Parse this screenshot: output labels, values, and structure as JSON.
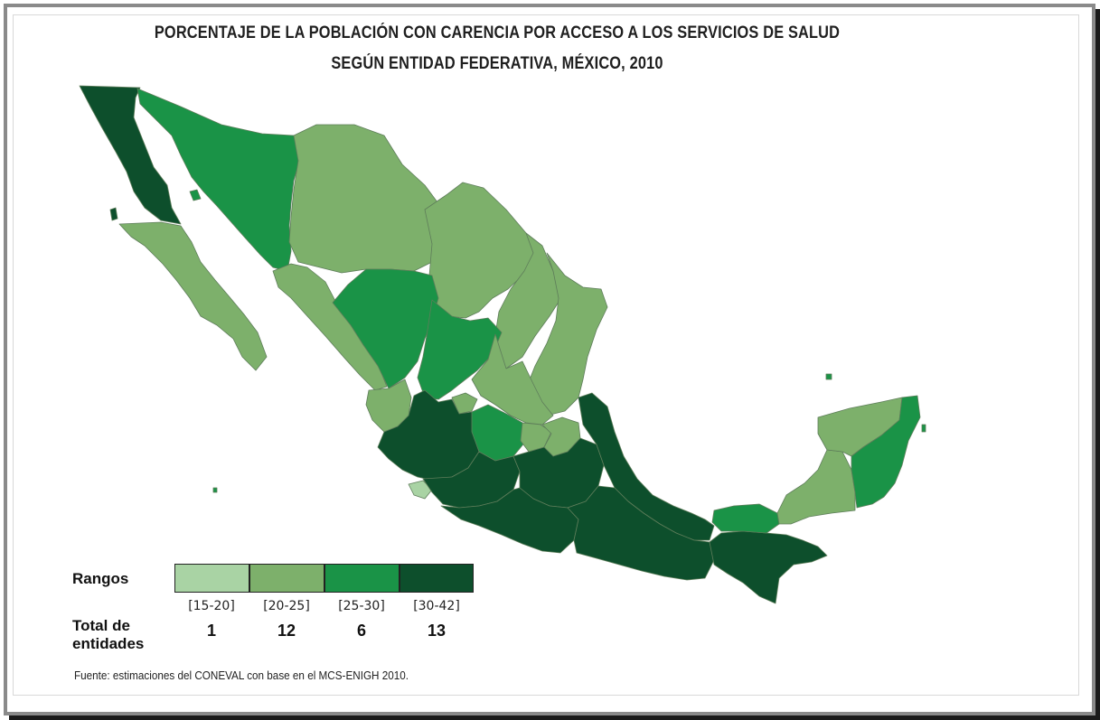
{
  "title_line1": "PORCENTAJE DE LA POBLACIÓN CON CARENCIA POR ACCESO A LOS SERVICIOS DE SALUD",
  "title_line2": "SEGÚN ENTIDAD FEDERATIVA, MÉXICO, 2010",
  "legend": {
    "rangos_label": "Rangos",
    "total_label_line1": "Total de",
    "total_label_line2": "entidades",
    "classes": [
      {
        "range": "[15-20]",
        "count": "1",
        "color": "#a9d3a4"
      },
      {
        "range": "[20-25]",
        "count": "12",
        "color": "#7db06b"
      },
      {
        "range": "[25-30]",
        "count": "6",
        "color": "#1a9347"
      },
      {
        "range": "[30-42]",
        "count": "13",
        "color": "#0d4f2c"
      }
    ]
  },
  "source": "Fuente: estimaciones del CONEVAL con base en el MCS-ENIGH 2010.",
  "colors": {
    "border_line": "#5e7d5a",
    "background": "#ffffff"
  }
}
